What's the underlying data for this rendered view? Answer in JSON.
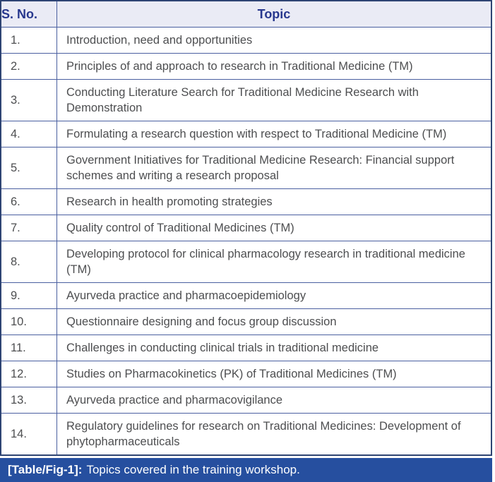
{
  "table": {
    "headers": {
      "sno": "S. No.",
      "topic": "Topic"
    },
    "rows": [
      {
        "sno": "1.",
        "topic": "Introduction, need and opportunities"
      },
      {
        "sno": "2.",
        "topic": "Principles of and approach to research in Traditional Medicine (TM)"
      },
      {
        "sno": "3.",
        "topic": "Conducting Literature Search for Traditional Medicine Research with Demonstration"
      },
      {
        "sno": "4.",
        "topic": "Formulating a research question with respect to Traditional Medicine (TM)"
      },
      {
        "sno": "5.",
        "topic": "Government Initiatives for Traditional Medicine Research: Financial support schemes and writing a research proposal"
      },
      {
        "sno": "6.",
        "topic": "Research in health promoting strategies"
      },
      {
        "sno": "7.",
        "topic": "Quality control of Traditional Medicines (TM)"
      },
      {
        "sno": "8.",
        "topic": "Developing protocol for clinical pharmacology research in traditional medicine (TM)"
      },
      {
        "sno": "9.",
        "topic": "Ayurveda practice and pharmacoepidemiology"
      },
      {
        "sno": "10.",
        "topic": "Questionnaire designing and focus group discussion"
      },
      {
        "sno": "11.",
        "topic": "Challenges in conducting clinical trials in traditional medicine"
      },
      {
        "sno": "12.",
        "topic": "Studies on Pharmacokinetics (PK) of Traditional Medicines (TM)"
      },
      {
        "sno": "13.",
        "topic": "Ayurveda practice and pharmacovigilance"
      },
      {
        "sno": "14.",
        "topic": "Regulatory guidelines for research on Traditional Medicines: Development of phytopharmaceuticals"
      }
    ]
  },
  "caption": {
    "label": "[Table/Fig-1]:",
    "text": "Topics covered in the training workshop."
  },
  "colors": {
    "header_bg": "#eaebf5",
    "header_text": "#28388e",
    "grid_border": "#4a5fa0",
    "outer_border": "#2e4473",
    "body_text": "#4d4e50",
    "caption_bg": "#264f9f",
    "caption_text": "#ffffff"
  }
}
